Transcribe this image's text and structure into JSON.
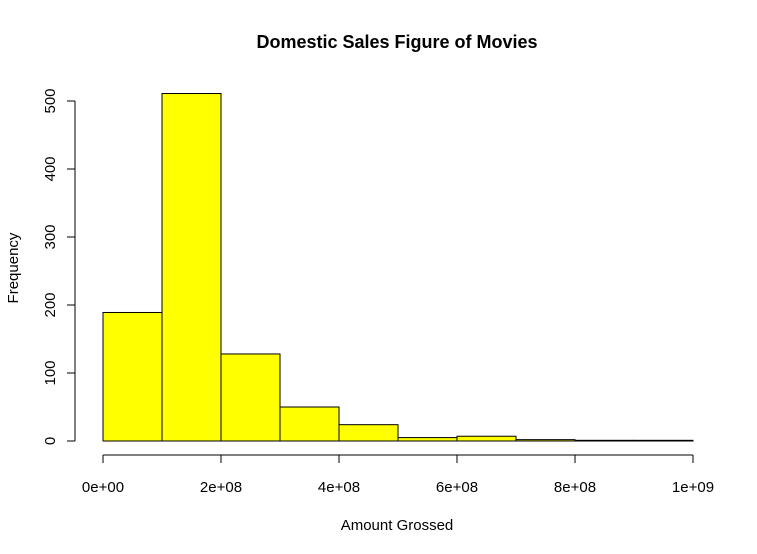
{
  "chart_data": {
    "type": "bar",
    "title": "Domestic Sales Figure of Movies",
    "xlabel": "Amount Grossed",
    "ylabel": "Frequency",
    "bins": [
      {
        "from": 0,
        "to": 100000000,
        "count": 189
      },
      {
        "from": 100000000,
        "to": 200000000,
        "count": 511
      },
      {
        "from": 200000000,
        "to": 300000000,
        "count": 128
      },
      {
        "from": 300000000,
        "to": 400000000,
        "count": 50
      },
      {
        "from": 400000000,
        "to": 500000000,
        "count": 24
      },
      {
        "from": 500000000,
        "to": 600000000,
        "count": 5
      },
      {
        "from": 600000000,
        "to": 700000000,
        "count": 7
      },
      {
        "from": 700000000,
        "to": 800000000,
        "count": 2
      },
      {
        "from": 800000000,
        "to": 900000000,
        "count": 1
      },
      {
        "from": 900000000,
        "to": 1000000000,
        "count": 1
      }
    ],
    "xlim": [
      0,
      1000000000
    ],
    "ylim": [
      0,
      511
    ],
    "x_ticks": [
      0,
      200000000,
      400000000,
      600000000,
      800000000,
      1000000000
    ],
    "x_tick_labels": [
      "0e+00",
      "2e+08",
      "4e+08",
      "6e+08",
      "8e+08",
      "1e+09"
    ],
    "y_ticks": [
      0,
      100,
      200,
      300,
      400,
      500
    ],
    "y_tick_labels": [
      "0",
      "100",
      "200",
      "300",
      "400",
      "500"
    ],
    "bar_color": "#ffff00",
    "grid": false
  }
}
